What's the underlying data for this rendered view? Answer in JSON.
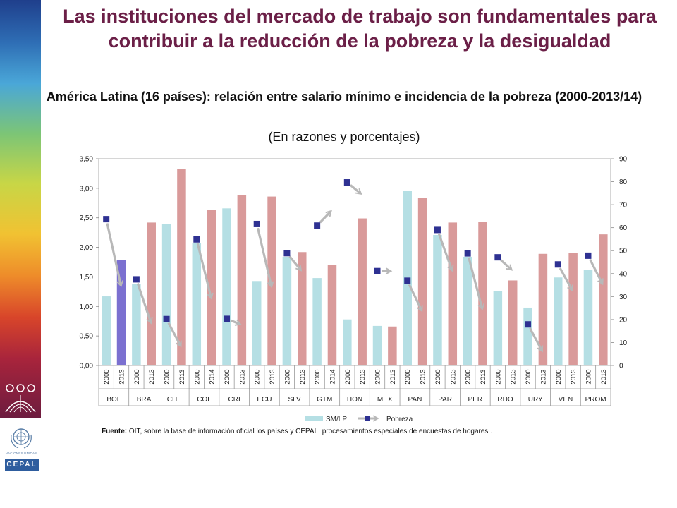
{
  "header": {
    "title": "Las instituciones del mercado de trabajo son fundamentales para contribuir a la reducción de la pobreza y la desigualdad"
  },
  "source": {
    "label": "Fuente:",
    "text": "OIT, sobre la base de información oficial los países y CEPAL, procesamientos especiales de encuestas de hogares ."
  },
  "logos": {
    "un_text": "NACIONES UNIDAS",
    "cepal_text": "CEPAL"
  },
  "colors": {
    "bar_2000": "#b5dfe4",
    "bar_latest": "#d99a9a",
    "bar_bol_2013": "#7b70d0",
    "marker": "#2e3192",
    "arrow": "#b8b8b8",
    "title": "#6b1f47",
    "cepal": "#2e5d9e"
  },
  "chart_data": {
    "type": "bar",
    "title": "América Latina (16 países): relación entre salario mínimo e incidencia de la pobreza (2000-2013/14)",
    "subtitle": "(En razones y porcentajes)",
    "y_left": {
      "range": [
        0,
        3.5
      ],
      "ticks": [
        "0,00",
        "0,50",
        "1,00",
        "1,50",
        "2,00",
        "2,50",
        "3,00",
        "3,50"
      ]
    },
    "y_right": {
      "range": [
        0,
        90
      ],
      "ticks": [
        "0",
        "10",
        "20",
        "30",
        "40",
        "50",
        "60",
        "70",
        "80",
        "90"
      ]
    },
    "legend": {
      "position": "bottom",
      "items": [
        "SM/LP",
        "Pobreza"
      ]
    },
    "countries": [
      {
        "code": "BOL",
        "years": [
          "2000",
          "2013"
        ],
        "sm_lp": [
          1.17,
          1.78
        ],
        "pobreza": [
          63.7,
          34
        ]
      },
      {
        "code": "BRA",
        "years": [
          "2000",
          "2013"
        ],
        "sm_lp": [
          1.38,
          2.42
        ],
        "pobreza": [
          37.5,
          17.9
        ]
      },
      {
        "code": "CHL",
        "years": [
          "2000",
          "2013"
        ],
        "sm_lp": [
          2.4,
          3.33
        ],
        "pobreza": [
          20.2,
          7.8
        ]
      },
      {
        "code": "COL",
        "years": [
          "2000",
          "2014"
        ],
        "sm_lp": [
          2.07,
          2.63
        ],
        "pobreza": [
          54.9,
          28.6
        ]
      },
      {
        "code": "CRI",
        "years": [
          "2000",
          "2013"
        ],
        "sm_lp": [
          2.66,
          2.89
        ],
        "pobreza": [
          20.3,
          17.7
        ]
      },
      {
        "code": "ECU",
        "years": [
          "2000",
          "2013"
        ],
        "sm_lp": [
          1.43,
          2.86
        ],
        "pobreza": [
          61.6,
          33.6
        ]
      },
      {
        "code": "SLV",
        "years": [
          "2000",
          "2013"
        ],
        "sm_lp": [
          1.84,
          1.92
        ],
        "pobreza": [
          48.9,
          40.9
        ]
      },
      {
        "code": "GTM",
        "years": [
          "2000",
          "2014"
        ],
        "sm_lp": [
          1.48,
          1.7
        ],
        "pobreza": [
          60.9,
          67.7
        ]
      },
      {
        "code": "HON",
        "years": [
          "2000",
          "2013"
        ],
        "sm_lp": [
          0.78,
          2.49
        ],
        "pobreza": [
          79.7,
          74.3
        ]
      },
      {
        "code": "MEX",
        "years": [
          "2000",
          "2013"
        ],
        "sm_lp": [
          0.67,
          0.66
        ],
        "pobreza": [
          41.1,
          41.1
        ]
      },
      {
        "code": "PAN",
        "years": [
          "2000",
          "2013"
        ],
        "sm_lp": [
          2.96,
          2.84
        ],
        "pobreza": [
          36.9,
          23.2
        ]
      },
      {
        "code": "PAR",
        "years": [
          "2000",
          "2013"
        ],
        "sm_lp": [
          2.21,
          2.42
        ],
        "pobreza": [
          59.0,
          40.7
        ]
      },
      {
        "code": "PER",
        "years": [
          "2000",
          "2013"
        ],
        "sm_lp": [
          1.84,
          2.43
        ],
        "pobreza": [
          48.8,
          23.9
        ]
      },
      {
        "code": "RDO",
        "years": [
          "2000",
          "2013"
        ],
        "sm_lp": [
          1.26,
          1.44
        ],
        "pobreza": [
          47.1,
          41.2
        ]
      },
      {
        "code": "URY",
        "years": [
          "2000",
          "2013"
        ],
        "sm_lp": [
          0.98,
          1.89
        ],
        "pobreza": [
          17.9,
          5.7
        ]
      },
      {
        "code": "VEN",
        "years": [
          "2000",
          "2013"
        ],
        "sm_lp": [
          1.49,
          1.91
        ],
        "pobreza": [
          44.0,
          32.1
        ]
      },
      {
        "code": "PROM",
        "years": [
          "2000",
          "2013"
        ],
        "sm_lp": [
          1.62,
          2.22
        ],
        "pobreza": [
          47.8,
          34.9
        ]
      }
    ]
  }
}
